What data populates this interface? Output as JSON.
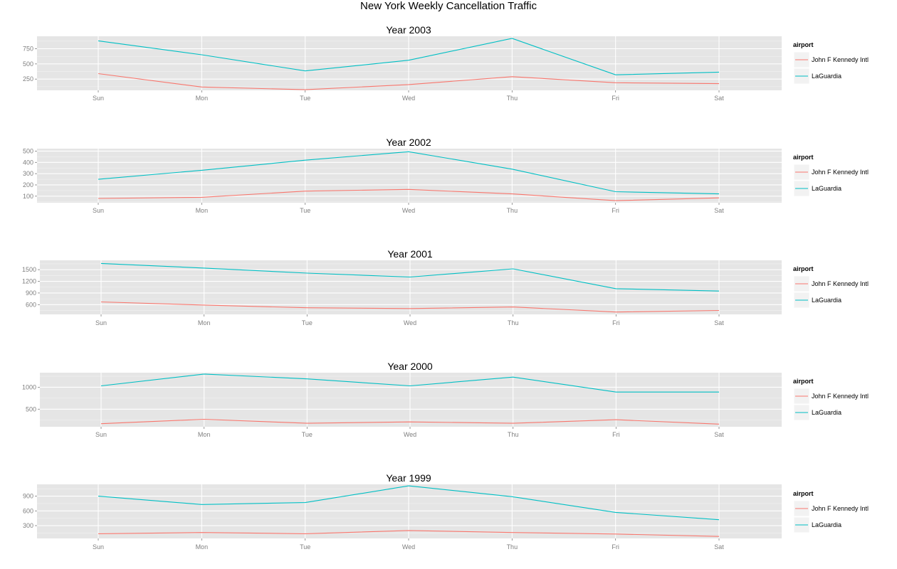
{
  "title": "New York Weekly Cancellation Traffic",
  "colors": {
    "John F Kennedy Intl": "#F8766D",
    "LaGuardia": "#00BFC4"
  },
  "chart_data": [
    {
      "type": "line",
      "title": "Year 2003",
      "categories": [
        "Sun",
        "Mon",
        "Tue",
        "Wed",
        "Thu",
        "Fri",
        "Sat"
      ],
      "yticks": [
        250,
        500,
        750
      ],
      "ylim": [
        65,
        955
      ],
      "grid": true,
      "legend": {
        "title": "airport",
        "position": "right"
      },
      "series": [
        {
          "name": "John F Kennedy Intl",
          "values": [
            340,
            120,
            75,
            160,
            290,
            190,
            175
          ]
        },
        {
          "name": "LaGuardia",
          "values": [
            880,
            650,
            385,
            560,
            920,
            320,
            365
          ]
        }
      ]
    },
    {
      "type": "line",
      "title": "Year 2002",
      "categories": [
        "Sun",
        "Mon",
        "Tue",
        "Wed",
        "Thu",
        "Fri",
        "Sat"
      ],
      "yticks": [
        100,
        200,
        300,
        400,
        500
      ],
      "ylim": [
        42,
        522
      ],
      "grid": true,
      "legend": {
        "title": "airport",
        "position": "right"
      },
      "series": [
        {
          "name": "John F Kennedy Intl",
          "values": [
            80,
            90,
            145,
            160,
            120,
            60,
            85
          ]
        },
        {
          "name": "LaGuardia",
          "values": [
            250,
            330,
            420,
            495,
            340,
            140,
            120
          ]
        }
      ]
    },
    {
      "type": "line",
      "title": "Year 2001",
      "categories": [
        "Sun",
        "Mon",
        "Tue",
        "Wed",
        "Thu",
        "Fri",
        "Sat"
      ],
      "yticks": [
        600,
        900,
        1200,
        1500
      ],
      "ylim": [
        350,
        1740
      ],
      "grid": true,
      "legend": {
        "title": "airport",
        "position": "right"
      },
      "series": [
        {
          "name": "John F Kennedy Intl",
          "values": [
            670,
            590,
            520,
            500,
            540,
            410,
            450
          ]
        },
        {
          "name": "LaGuardia",
          "values": [
            1660,
            1540,
            1410,
            1310,
            1520,
            1010,
            950
          ]
        }
      ]
    },
    {
      "type": "line",
      "title": "Year 2000",
      "categories": [
        "Sun",
        "Mon",
        "Tue",
        "Wed",
        "Thu",
        "Fri",
        "Sat"
      ],
      "yticks": [
        500,
        1000
      ],
      "ylim": [
        100,
        1330
      ],
      "grid": true,
      "legend": {
        "title": "airport",
        "position": "right"
      },
      "series": [
        {
          "name": "John F Kennedy Intl",
          "values": [
            170,
            270,
            180,
            210,
            180,
            260,
            160
          ]
        },
        {
          "name": "LaGuardia",
          "values": [
            1030,
            1300,
            1190,
            1030,
            1230,
            890,
            890
          ]
        }
      ]
    },
    {
      "type": "line",
      "title": "Year 1999",
      "categories": [
        "Sun",
        "Mon",
        "Tue",
        "Wed",
        "Thu",
        "Fri",
        "Sat"
      ],
      "yticks": [
        300,
        600,
        900
      ],
      "ylim": [
        40,
        1140
      ],
      "grid": true,
      "legend": {
        "title": "airport",
        "position": "right"
      },
      "series": [
        {
          "name": "John F Kennedy Intl",
          "values": [
            135,
            160,
            135,
            200,
            160,
            130,
            80
          ]
        },
        {
          "name": "LaGuardia",
          "values": [
            900,
            730,
            770,
            1110,
            890,
            570,
            420
          ]
        }
      ]
    }
  ]
}
